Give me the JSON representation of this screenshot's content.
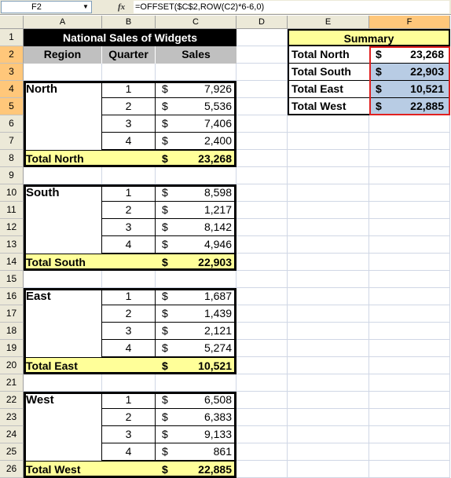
{
  "formula_bar": {
    "name_box": "F2",
    "fx_label": "fx",
    "formula": "=OFFSET($C$2,ROW(C2)*6-6,0)"
  },
  "columns": [
    {
      "id": "A",
      "w": 100
    },
    {
      "id": "B",
      "w": 68
    },
    {
      "id": "C",
      "w": 103
    },
    {
      "id": "D",
      "w": 65
    },
    {
      "id": "E",
      "w": 104
    },
    {
      "id": "F",
      "w": 103
    }
  ],
  "selected_column": "F",
  "selected_rows": [
    2,
    3,
    4,
    5
  ],
  "rows": [
    "1",
    "2",
    "3",
    "4",
    "5",
    "6",
    "7",
    "8",
    "9",
    "10",
    "11",
    "12",
    "13",
    "14",
    "15",
    "16",
    "17",
    "18",
    "19",
    "20",
    "21",
    "22",
    "23",
    "24",
    "25",
    "26"
  ],
  "title": "National Sales of Widgets",
  "headers": {
    "region": "Region",
    "quarter": "Quarter",
    "sales": "Sales"
  },
  "currency": "$",
  "regions": [
    {
      "name": "North",
      "quarters": [
        "1",
        "2",
        "3",
        "4"
      ],
      "sales": [
        "7,926",
        "5,536",
        "7,406",
        "2,400"
      ],
      "total_label": "Total North",
      "total": "23,268"
    },
    {
      "name": "South",
      "quarters": [
        "1",
        "2",
        "3",
        "4"
      ],
      "sales": [
        "8,598",
        "1,217",
        "8,142",
        "4,946"
      ],
      "total_label": "Total South",
      "total": "22,903"
    },
    {
      "name": "East",
      "quarters": [
        "1",
        "2",
        "3",
        "4"
      ],
      "sales": [
        "1,687",
        "1,439",
        "2,121",
        "5,274"
      ],
      "total_label": "Total East",
      "total": "10,521"
    },
    {
      "name": "West",
      "quarters": [
        "1",
        "2",
        "3",
        "4"
      ],
      "sales": [
        "6,508",
        "6,383",
        "9,133",
        "861"
      ],
      "total_label": "Total West",
      "total": "22,885"
    }
  ],
  "summary": {
    "title": "Summary",
    "rows": [
      {
        "label": "Total North",
        "value": "23,268"
      },
      {
        "label": "Total South",
        "value": "22,903"
      },
      {
        "label": "Total East",
        "value": "10,521"
      },
      {
        "label": "Total West",
        "value": "22,885"
      }
    ]
  },
  "colors": {
    "title_bg": "#000000",
    "header_bg": "#c0c0c0",
    "total_bg": "#ffff99",
    "summary_title_bg": "#ffff99",
    "selection_bg": "#b8cce4",
    "selection_border": "#e02020",
    "sel_header": "#ffc77a"
  }
}
